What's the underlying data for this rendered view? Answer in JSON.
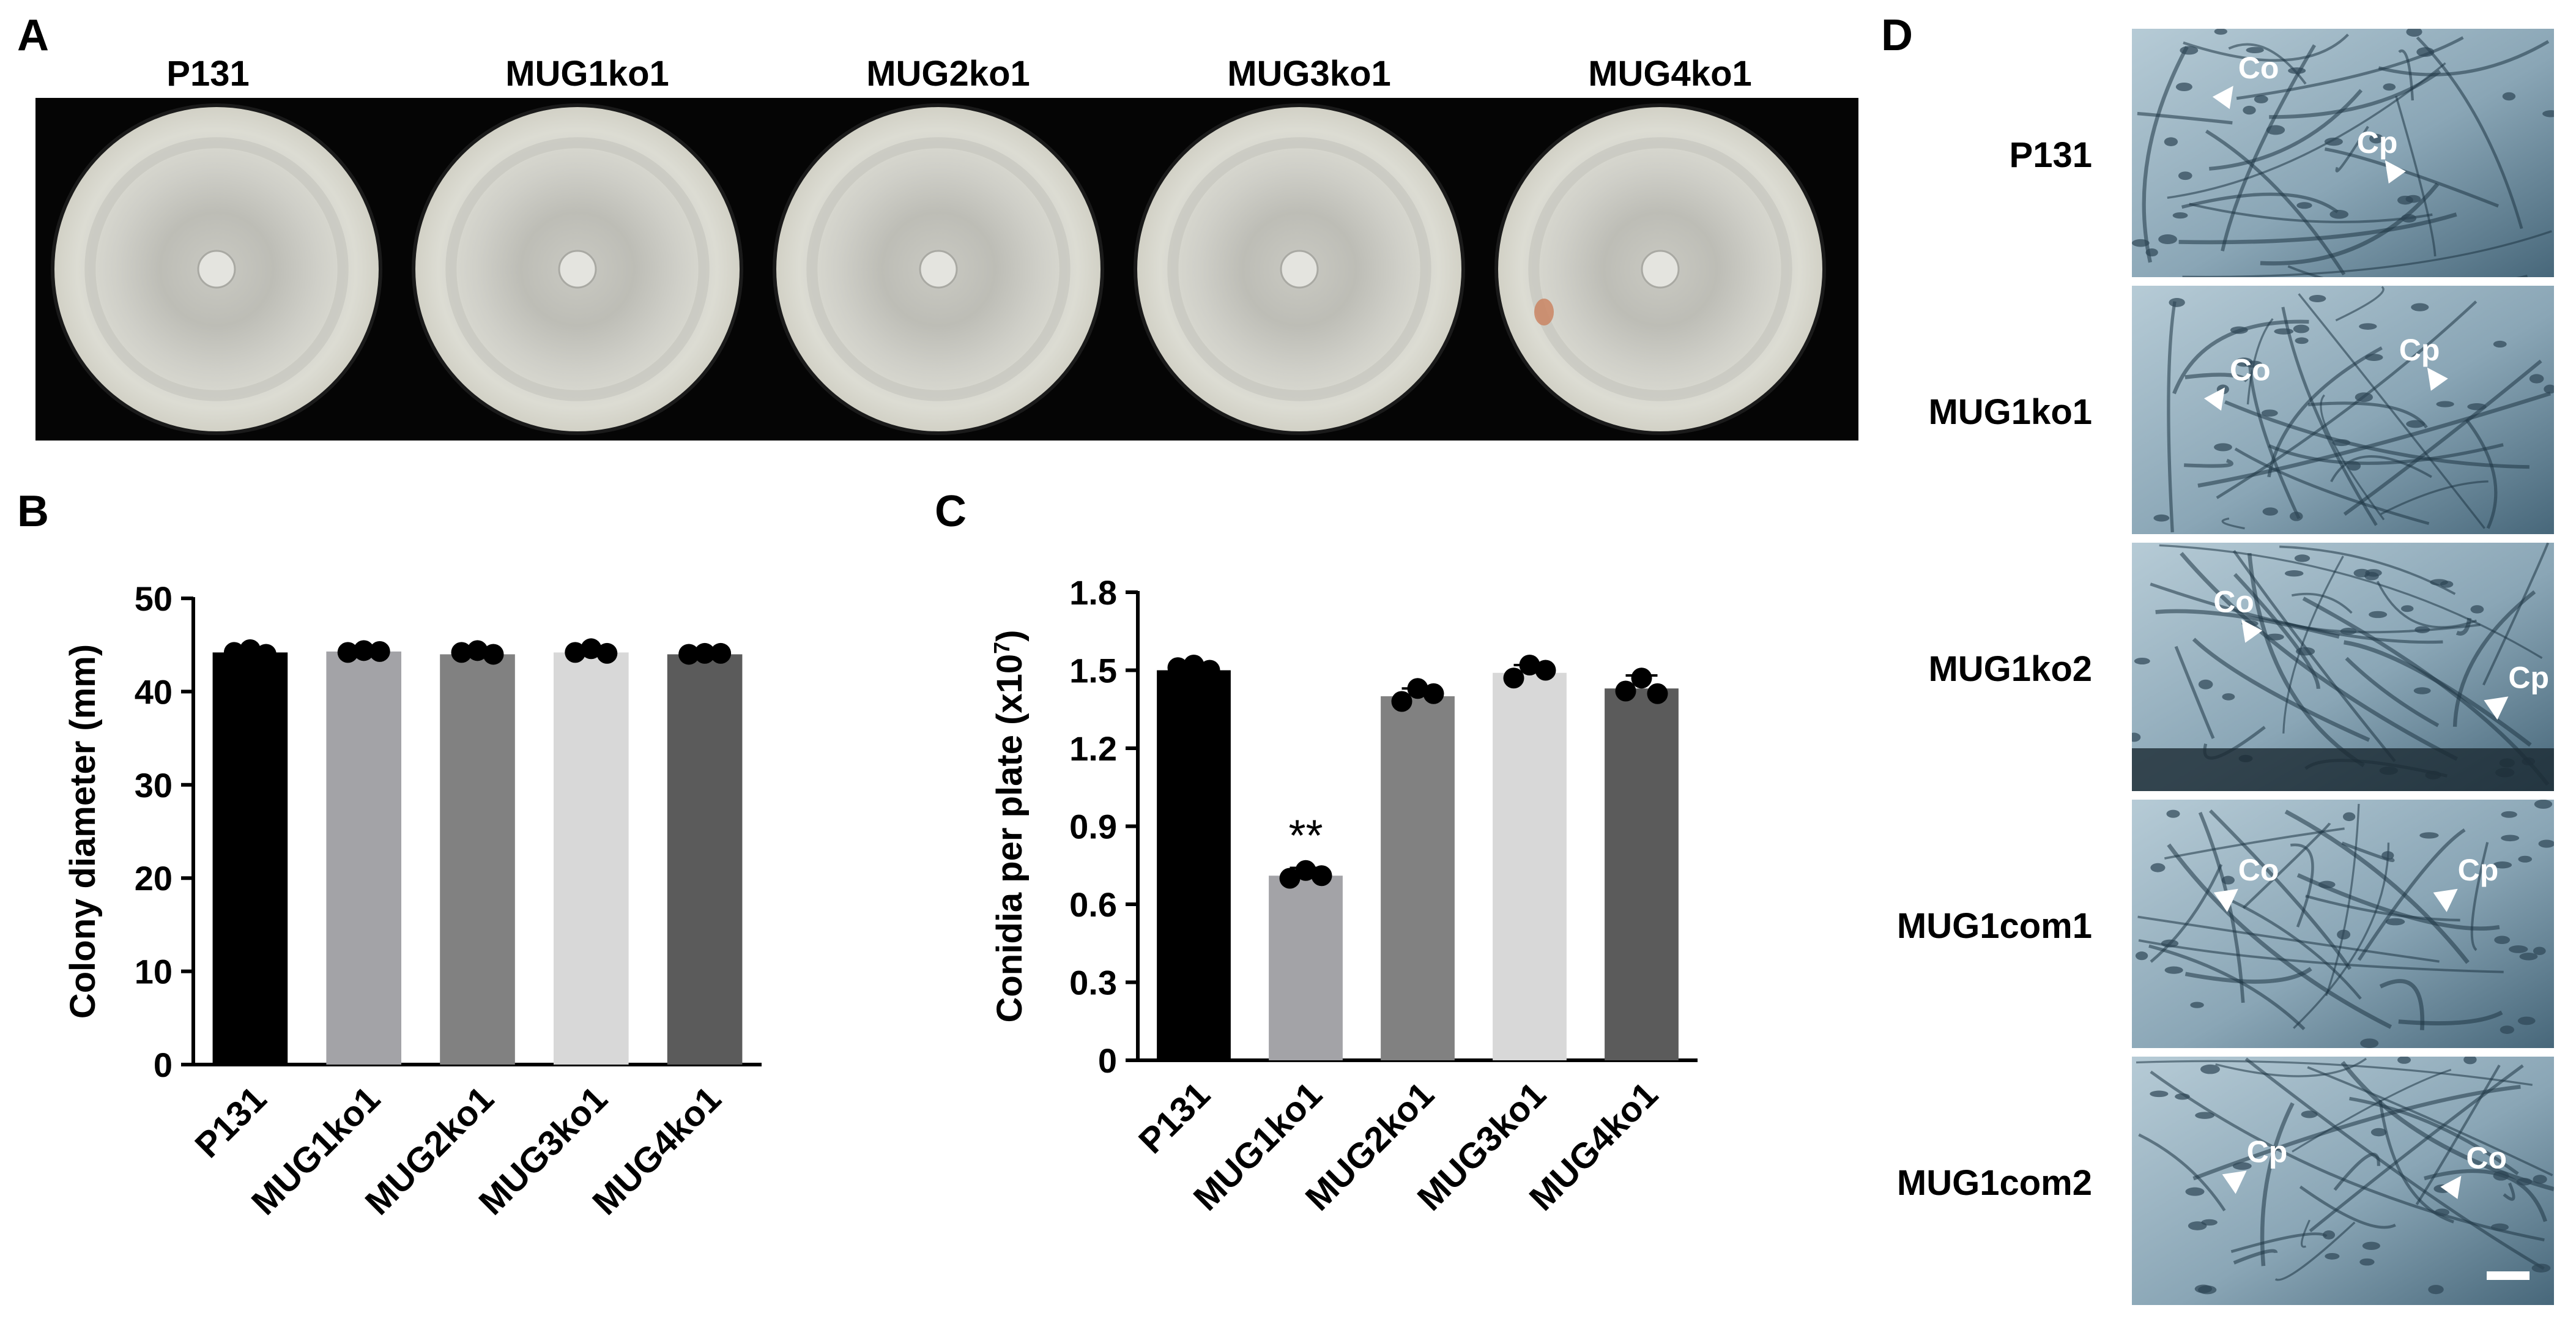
{
  "panel_letters": [
    "A",
    "B",
    "C",
    "D"
  ],
  "panel_a": {
    "plates": [
      {
        "label": "P131",
        "spot": false
      },
      {
        "label": "MUG1ko1",
        "spot": false
      },
      {
        "label": "MUG2ko1",
        "spot": false
      },
      {
        "label": "MUG3ko1",
        "spot": false
      },
      {
        "label": "MUG4ko1",
        "spot": true
      }
    ]
  },
  "panel_d": {
    "rows": [
      {
        "label": "P131",
        "annotations": [
          {
            "text": "Co",
            "dir": "left",
            "rx": 0.22,
            "ry": 0.2
          },
          {
            "text": "Cp",
            "dir": "right",
            "rx": 0.62,
            "ry": 0.5
          }
        ]
      },
      {
        "label": "MUG1ko1",
        "annotations": [
          {
            "text": "Co",
            "dir": "left",
            "rx": 0.2,
            "ry": 0.38
          },
          {
            "text": "Cp",
            "dir": "right",
            "rx": 0.72,
            "ry": 0.3
          }
        ]
      },
      {
        "label": "MUG1ko2",
        "annotations": [
          {
            "text": "Co",
            "dir": "right",
            "rx": 0.28,
            "ry": 0.28
          },
          {
            "text": "Cp",
            "dir": "down",
            "rx": 0.86,
            "ry": 0.56
          }
        ]
      },
      {
        "label": "MUG1com1",
        "annotations": [
          {
            "text": "Co",
            "dir": "down",
            "rx": 0.22,
            "ry": 0.3
          },
          {
            "text": "Cp",
            "dir": "down",
            "rx": 0.74,
            "ry": 0.3
          }
        ]
      },
      {
        "label": "MUG1com2",
        "annotations": [
          {
            "text": "Cp",
            "dir": "down",
            "rx": 0.24,
            "ry": 0.4
          },
          {
            "text": "Co",
            "dir": "left",
            "rx": 0.76,
            "ry": 0.45
          }
        ]
      }
    ],
    "scale_bar": true
  },
  "chart_data": [
    {
      "type": "bar",
      "categories": [
        "P131",
        "MUG1ko1",
        "MUG2ko1",
        "MUG3ko1",
        "MUG4ko1"
      ],
      "values": [
        44.2,
        44.3,
        44.0,
        44.2,
        44.0
      ],
      "points": [
        [
          44.2,
          44.5,
          44.0
        ],
        [
          44.2,
          44.4,
          44.3
        ],
        [
          44.2,
          44.4,
          44.0
        ],
        [
          44.2,
          44.6,
          44.1
        ],
        [
          44.0,
          44.1,
          44.1
        ]
      ],
      "errors": [
        0.2,
        0.1,
        0.2,
        0.2,
        0.1
      ],
      "colors": [
        "#000000",
        "#a3a3a7",
        "#818181",
        "#d8d8d8",
        "#5b5b5b"
      ],
      "ylabel": "Colony diameter  (mm)",
      "xlabel": "",
      "ylim": [
        0,
        50
      ],
      "yticks": [
        0,
        10,
        20,
        30,
        40,
        50
      ],
      "annotations": []
    },
    {
      "type": "bar",
      "categories": [
        "P131",
        "MUG1ko1",
        "MUG2ko1",
        "MUG3ko1",
        "MUG4ko1"
      ],
      "values": [
        1.5,
        0.71,
        1.4,
        1.49,
        1.43
      ],
      "points": [
        [
          1.51,
          1.52,
          1.5
        ],
        [
          0.7,
          0.73,
          0.71
        ],
        [
          1.38,
          1.43,
          1.41
        ],
        [
          1.47,
          1.52,
          1.5
        ],
        [
          1.42,
          1.47,
          1.41
        ]
      ],
      "errors": [
        0.02,
        0.03,
        0.03,
        0.03,
        0.05
      ],
      "colors": [
        "#000000",
        "#a3a3a7",
        "#818181",
        "#d8d8d8",
        "#5b5b5b"
      ],
      "ylabel": "Conidia per plate (x10",
      "ylabel_sup": "7",
      "ylabel_end": ")",
      "xlabel": "",
      "ylim": [
        0,
        1.8
      ],
      "yticks": [
        "0",
        "0.3",
        "0.6",
        "0.9",
        "1.2",
        "1.5",
        "1.8"
      ],
      "annotations": [
        {
          "category": "MUG1ko1",
          "text": "**"
        }
      ]
    }
  ]
}
